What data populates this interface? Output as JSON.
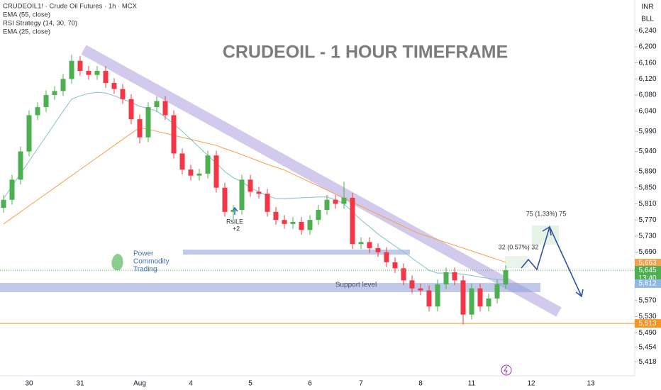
{
  "chart_data": {
    "type": "candlestick",
    "title": "CRUDEOIL - 1 HOUR TIMEFRAME",
    "symbol": "CRUDEOIL1! · Crude Oil Futures · 1h · MCX",
    "strategy_name": "RSI Strategy (14, 30, 70)",
    "currency": "INR",
    "unit": "BLL",
    "up_color": "#4caf50",
    "down_color": "#f23645",
    "categories": [
      null,
      null,
      null,
      "30",
      null,
      null,
      null,
      null,
      null,
      "31",
      null,
      null,
      null,
      null,
      null,
      null,
      "Aug",
      null,
      null,
      null,
      null,
      null,
      "4",
      null,
      null,
      null,
      null,
      null,
      null,
      "5",
      null,
      null,
      null,
      null,
      null,
      null,
      "6",
      null,
      null,
      null,
      null,
      null,
      "7",
      null,
      null,
      null,
      null,
      null,
      null,
      "8",
      null,
      null,
      null,
      null,
      null,
      "11",
      null,
      null,
      null,
      null,
      null,
      null,
      "12",
      null,
      null,
      null,
      null,
      null,
      null,
      "13"
    ],
    "open": [
      5800,
      5820,
      5870,
      5940,
      6030,
      6050,
      6080,
      6090,
      6120,
      6165,
      6140,
      6130,
      6140,
      6110,
      6095,
      6070,
      6020,
      5975,
      6050,
      6065,
      6030,
      5935,
      5895,
      5880,
      5885,
      5930,
      5850,
      5790,
      5795,
      5870,
      5840,
      5835,
      5790,
      5770,
      5760,
      5765,
      5745,
      5770,
      5795,
      5820,
      5810,
      5825,
      5710,
      5715,
      5700,
      5690,
      5665,
      5650,
      5620,
      5600,
      5595,
      5555,
      5610,
      5640,
      5620,
      5535,
      5600,
      5555,
      5575,
      5610,
      null,
      null,
      null,
      null,
      null,
      null,
      null,
      null,
      null,
      null
    ],
    "high": [
      5832,
      5882,
      5952,
      6042,
      6062,
      6092,
      6102,
      6132,
      6180,
      6177,
      6152,
      6152,
      6152,
      6122,
      6107,
      6082,
      6032,
      6062,
      6077,
      6077,
      6042,
      5947,
      5907,
      5897,
      5942,
      5942,
      5862,
      5807,
      5882,
      5882,
      5852,
      5847,
      5802,
      5782,
      5777,
      5777,
      5782,
      5807,
      5832,
      5832,
      5865,
      5837,
      5727,
      5727,
      5712,
      5702,
      5677,
      5662,
      5632,
      5612,
      5607,
      5622,
      5652,
      5652,
      5632,
      5612,
      5612,
      5587,
      5622,
      5657,
      null,
      null,
      null,
      null,
      null,
      null,
      null,
      null,
      null,
      null
    ],
    "low": [
      5788,
      5808,
      5858,
      5928,
      6018,
      6038,
      6068,
      6078,
      6108,
      6128,
      6118,
      6118,
      6098,
      6083,
      6058,
      6008,
      5960,
      5963,
      6038,
      6018,
      5923,
      5883,
      5868,
      5868,
      5873,
      5838,
      5778,
      5770,
      5783,
      5828,
      5823,
      5778,
      5758,
      5748,
      5748,
      5733,
      5733,
      5758,
      5783,
      5798,
      5798,
      5698,
      5698,
      5688,
      5678,
      5653,
      5638,
      5608,
      5588,
      5583,
      5543,
      5543,
      5598,
      5608,
      5510,
      5523,
      5543,
      5543,
      5563,
      5598,
      null,
      null,
      null,
      null,
      null,
      null,
      null,
      null,
      null,
      null
    ],
    "close": [
      5820,
      5870,
      5940,
      6030,
      6050,
      6080,
      6090,
      6120,
      6165,
      6140,
      6130,
      6140,
      6110,
      6095,
      6070,
      6020,
      5975,
      6050,
      6065,
      6030,
      5935,
      5895,
      5880,
      5885,
      5930,
      5850,
      5790,
      5795,
      5870,
      5840,
      5835,
      5790,
      5770,
      5760,
      5765,
      5745,
      5770,
      5795,
      5820,
      5810,
      5825,
      5710,
      5715,
      5700,
      5690,
      5665,
      5650,
      5620,
      5600,
      5595,
      5555,
      5610,
      5640,
      5620,
      5535,
      5600,
      5555,
      5575,
      5610,
      5645,
      null,
      null,
      null,
      null,
      null,
      null,
      null,
      null,
      null,
      null
    ],
    "series": [
      {
        "name": "EMA (55, close)",
        "color": "#f5a04a",
        "values": [
          5760,
          5775,
          5790,
          5805,
          5820,
          5835,
          5850,
          5865,
          5880,
          5895,
          5910,
          5925,
          5940,
          5955,
          5970,
          5985,
          5999,
          5995,
          5990,
          5985,
          5980,
          5975,
          5970,
          5965,
          5960,
          5955,
          5947,
          5940,
          5932,
          5924,
          5916,
          5908,
          5901,
          5894,
          5884,
          5874,
          5864,
          5854,
          5844,
          5834,
          5824,
          5814,
          5804,
          5794,
          5784,
          5774,
          5764,
          5754,
          5744,
          5735,
          5728,
          5721,
          5714,
          5707,
          5700,
          5693,
          5686,
          5679,
          5672,
          5665,
          null,
          null,
          null,
          null,
          null,
          null,
          null,
          null,
          null,
          null
        ]
      },
      {
        "name": "EMA (25, close)",
        "color": "#7fc3c9",
        "values": [
          5823,
          5854,
          5885,
          5916,
          5947,
          5978,
          6009,
          6040,
          6070,
          6078,
          6084,
          6087,
          6085,
          6078,
          6070,
          6062,
          6052,
          6047,
          6040,
          6025,
          6008,
          5990,
          5970,
          5950,
          5930,
          5911,
          5890,
          5875,
          5865,
          5850,
          5840,
          5830,
          5823,
          5823,
          5824,
          5825,
          5826,
          5827,
          5827,
          5820,
          5810,
          5790,
          5770,
          5753,
          5735,
          5720,
          5705,
          5691,
          5675,
          5660,
          5645,
          5638,
          5638,
          5638,
          5635,
          5632,
          5628,
          5625,
          5622,
          5621,
          null,
          null,
          null,
          null,
          null,
          null,
          null,
          null,
          null,
          null
        ]
      }
    ],
    "ylim": [
      5383,
      6316
    ],
    "yticks": [
      {
        "value": 6240,
        "label": "6,240"
      },
      {
        "value": 6200,
        "label": "6,200"
      },
      {
        "value": 6160,
        "label": "6,160"
      },
      {
        "value": 6120,
        "label": "6,120"
      },
      {
        "value": 6080,
        "label": "6,080"
      },
      {
        "value": 6040,
        "label": "6,040"
      },
      {
        "value": 5990,
        "label": "5,990"
      },
      {
        "value": 5940,
        "label": "5,940"
      },
      {
        "value": 5890,
        "label": "5,890"
      },
      {
        "value": 5850,
        "label": "5,850"
      },
      {
        "value": 5810,
        "label": "5,810"
      },
      {
        "value": 5770,
        "label": "5,770"
      },
      {
        "value": 5730,
        "label": "5,730"
      },
      {
        "value": 5690,
        "label": "5,690"
      },
      {
        "value": 5570,
        "label": "5,570"
      },
      {
        "value": 5530,
        "label": "5,530"
      },
      {
        "value": 5490,
        "label": "5,490"
      },
      {
        "value": 5454,
        "label": "5,454"
      },
      {
        "value": 5418,
        "label": "5,418"
      }
    ],
    "price_labels": [
      {
        "value": 5663,
        "label": "5,663",
        "color": "#f5a04a"
      },
      {
        "value": 5645,
        "label": "5,645",
        "color": "#4caf50"
      },
      {
        "value": 5612,
        "label": "5,612",
        "color": "#90b8e6"
      },
      {
        "value": 5513,
        "label": "5,513",
        "color": "#f7931e"
      }
    ],
    "countdown": "13:40",
    "annotations": {
      "signal": "RsiLE",
      "signal_count": "+2",
      "support": "Support level",
      "target1": "32 (0.57%) 32",
      "target2": "75 (1.33%) 75"
    },
    "logo": [
      "Power",
      "Commodity",
      "Trading"
    ]
  }
}
